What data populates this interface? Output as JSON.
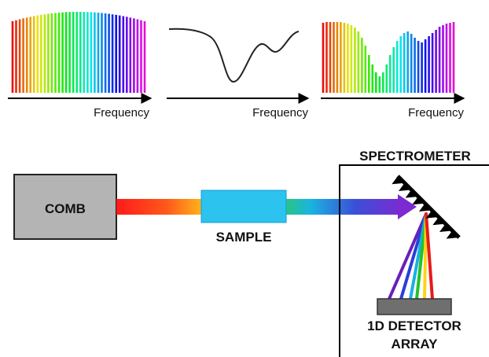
{
  "panels": [
    {
      "axis_label": "Frequency"
    },
    {
      "axis_label": "Frequency"
    },
    {
      "axis_label": "Frequency"
    }
  ],
  "diagram": {
    "comb_label": "COMB",
    "sample_label": "SAMPLE",
    "spectrometer_label": "SPECTROMETER",
    "detector_label_line1": "1D DETECTOR",
    "detector_label_line2": "ARRAY"
  },
  "comb_spectrum": {
    "envelope": "rounded-top",
    "line_count": 38
  },
  "absorption_profile": {
    "features": [
      "deep dip",
      "shallow dip"
    ]
  },
  "transmitted_spectrum": {
    "line_count": 38
  },
  "colors": {
    "beam_gradient": [
      "#ff1a1a",
      "#ff8c1a",
      "#ffd21a",
      "#2fd12f",
      "#1ab0e8",
      "#3a4fd8",
      "#7b2bd1"
    ],
    "sample": "#2cc3ef",
    "comb_box": "#b4b4b4",
    "detector": "#6f6f6f",
    "grating": "#000000"
  }
}
